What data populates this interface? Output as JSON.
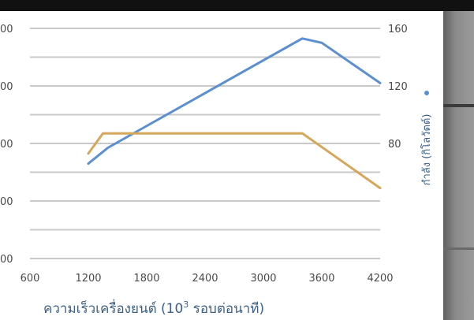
{
  "chart_data": {
    "type": "line",
    "xlabel": "ความเร็วเครื่องยนต์ (10³ รอบต่อนาที)",
    "xlabel_main": "ความเร็วเครื่องยนต์ (10",
    "xlabel_sup": "3",
    "xlabel_tail": " รอบต่อนาที)",
    "ylabel_right": "กำลัง (กิโลวัตต์)",
    "x_ticks": [
      "600",
      "1200",
      "1800",
      "2400",
      "3000",
      "3600",
      "4200"
    ],
    "xlim": [
      600,
      4200
    ],
    "y_right_ticks": [
      "160",
      "120",
      "80"
    ],
    "y_right_lim": [
      40,
      160
    ],
    "y_left_ticks_visible": [
      "00",
      "00",
      "00",
      "00",
      "00"
    ],
    "grid": true,
    "series": [
      {
        "color": "#5b8fcf",
        "axis": "right",
        "x": [
          1200,
          1400,
          3400,
          3600,
          4200
        ],
        "y": [
          66,
          77,
          153,
          150,
          122
        ]
      },
      {
        "color": "#d6a75b",
        "axis": "right",
        "x": [
          1200,
          1350,
          3400,
          4200
        ],
        "y": [
          73,
          87,
          87,
          49
        ]
      }
    ]
  },
  "colors": {
    "grid": "#c9c9c9",
    "power_marker": "#5b8fcf"
  }
}
